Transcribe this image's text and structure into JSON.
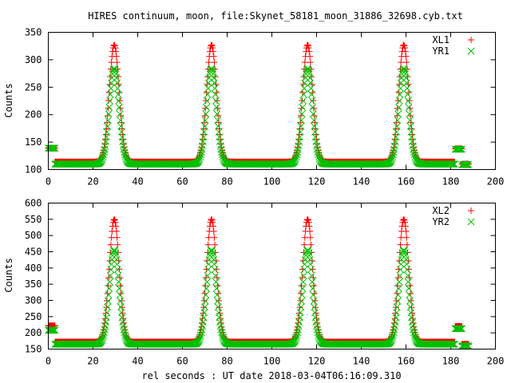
{
  "title": "HIRES continuum, moon, file:Skynet_58181_moon_31886_32698.cyb.txt",
  "xlabel": "rel seconds : UT date 2018-03-04T06:16:09.310",
  "colors": {
    "red": "#ff0000",
    "green": "#00c000"
  },
  "chart_data": [
    {
      "type": "scatter",
      "ylabel": "Counts",
      "xlim": [
        0,
        200
      ],
      "ylim": [
        100,
        350
      ],
      "xticks": [
        "0",
        "20",
        "40",
        "60",
        "80",
        "100",
        "120",
        "140",
        "160",
        "180",
        "200"
      ],
      "yticks": [
        "100",
        "150",
        "200",
        "250",
        "300",
        "350"
      ],
      "legend": "top-right",
      "series": [
        {
          "name": "XL1",
          "marker": "plus",
          "color": "#ff0000",
          "calibration": {
            "x": [
              0,
              3
            ],
            "y": 139
          },
          "baseline": 114,
          "peak": 327,
          "peak_x": [
            29.5,
            73,
            116,
            159
          ],
          "sigma": 2.2,
          "scan_x": [
            3,
            187
          ],
          "tail": {
            "x": [
              182,
              185
            ],
            "y": 138
          },
          "end": {
            "x": [
              185,
              188
            ],
            "y": 110
          }
        },
        {
          "name": "YR1",
          "marker": "cross",
          "color": "#00c000",
          "calibration": {
            "x": [
              0,
              3
            ],
            "y": 139
          },
          "baseline": 110,
          "peak": 284,
          "peak_x": [
            29.5,
            73,
            116,
            159
          ],
          "sigma": 2.2,
          "scan_x": [
            3,
            187
          ],
          "tail": {
            "x": [
              182,
              185
            ],
            "y": 137
          },
          "end": {
            "x": [
              185,
              188
            ],
            "y": 109
          }
        }
      ]
    },
    {
      "type": "scatter",
      "ylabel": "Counts",
      "xlim": [
        0,
        200
      ],
      "ylim": [
        150,
        600
      ],
      "xticks": [
        "0",
        "20",
        "40",
        "60",
        "80",
        "100",
        "120",
        "140",
        "160",
        "180",
        "200"
      ],
      "yticks": [
        "150",
        "200",
        "250",
        "300",
        "350",
        "400",
        "450",
        "500",
        "550",
        "600"
      ],
      "legend": "top-right",
      "series": [
        {
          "name": "XL2",
          "marker": "plus",
          "color": "#ff0000",
          "calibration": {
            "x": [
              0,
              3
            ],
            "y": 222
          },
          "baseline": 172,
          "peak": 550,
          "peak_x": [
            29.5,
            73,
            116,
            159
          ],
          "sigma": 2.2,
          "scan_x": [
            3,
            187
          ],
          "tail": {
            "x": [
              182,
              185
            ],
            "y": 220
          },
          "end": {
            "x": [
              185,
              188
            ],
            "y": 165
          }
        },
        {
          "name": "YR2",
          "marker": "cross",
          "color": "#00c000",
          "calibration": {
            "x": [
              0,
              3
            ],
            "y": 208
          },
          "baseline": 165,
          "peak": 455,
          "peak_x": [
            29.5,
            73,
            116,
            159
          ],
          "sigma": 2.2,
          "scan_x": [
            3,
            187
          ],
          "tail": {
            "x": [
              182,
              185
            ],
            "y": 213
          },
          "end": {
            "x": [
              185,
              188
            ],
            "y": 160
          }
        }
      ]
    }
  ]
}
